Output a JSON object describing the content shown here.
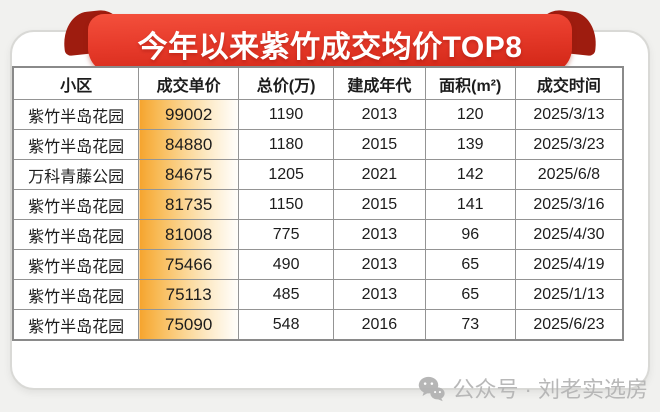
{
  "banner": {
    "title": "今年以来紫竹成交均价TOP8",
    "ribbon_red": "#e63a2a",
    "fold_red": "#9e1c0f"
  },
  "chart_data": {
    "type": "table",
    "title": "今年以来紫竹成交均价TOP8",
    "columns": [
      "小区",
      "成交单价",
      "总价(万)",
      "建成年代",
      "面积(m²)",
      "成交时间"
    ],
    "rows": [
      [
        "紫竹半岛花园",
        "99002",
        "1190",
        "2013",
        "120",
        "2025/3/13"
      ],
      [
        "紫竹半岛花园",
        "84880",
        "1180",
        "2015",
        "139",
        "2025/3/23"
      ],
      [
        "万科青藤公园",
        "84675",
        "1205",
        "2021",
        "142",
        "2025/6/8"
      ],
      [
        "紫竹半岛花园",
        "81735",
        "1150",
        "2015",
        "141",
        "2025/3/16"
      ],
      [
        "紫竹半岛花园",
        "81008",
        "775",
        "2013",
        "96",
        "2025/4/30"
      ],
      [
        "紫竹半岛花园",
        "75466",
        "490",
        "2013",
        "65",
        "2025/4/19"
      ],
      [
        "紫竹半岛花园",
        "75113",
        "485",
        "2013",
        "65",
        "2025/1/13"
      ],
      [
        "紫竹半岛花园",
        "75090",
        "548",
        "2016",
        "73",
        "2025/6/23"
      ]
    ],
    "highlight_column": "成交单价",
    "highlight_gradient": [
      "#f6a42e",
      "#fffefb"
    ]
  },
  "watermark": {
    "icon": "wechat-icon",
    "text": "公众号 · 刘老实选房",
    "color": "#b5b5b5"
  }
}
